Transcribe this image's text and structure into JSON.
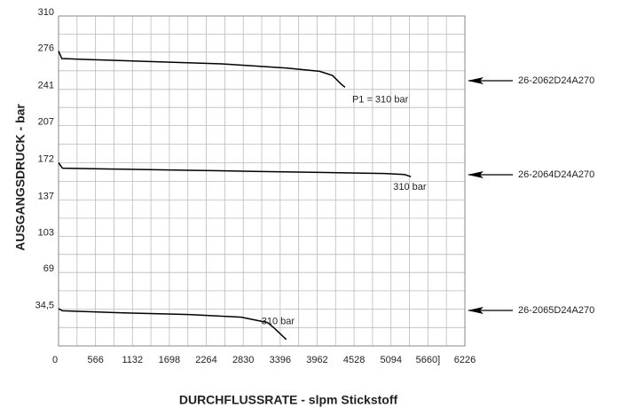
{
  "chart_data": {
    "type": "line",
    "xlabel": "DURCHFLUSSRATE - slpm Stickstoff",
    "ylabel": "AUSGANGSDRUCK - bar",
    "xlim": [
      0,
      6226
    ],
    "ylim": [
      0,
      310
    ],
    "xticks": [
      0,
      566,
      1132,
      1698,
      2264,
      2830,
      3396,
      3962,
      4528,
      5094,
      {
        "value": 5660,
        "label": "5660]"
      },
      6226
    ],
    "yticks": [
      {
        "value": 34.5,
        "label": "34,5"
      },
      69,
      103,
      137,
      172,
      207,
      241,
      276,
      310
    ],
    "grid": true,
    "series": [
      {
        "name": "26-2062D24A270",
        "color": "#000000",
        "annotation": "P1 = 310 bar",
        "x": [
          0,
          50,
          500,
          1500,
          2500,
          3500,
          4000,
          4200,
          4330,
          4390
        ],
        "values": [
          277,
          270,
          269,
          267,
          265,
          261,
          258,
          254,
          246,
          243
        ]
      },
      {
        "name": "26-2064D24A270",
        "color": "#000000",
        "annotation": "310 bar",
        "x": [
          0,
          60,
          1000,
          2000,
          3000,
          4000,
          5000,
          5300,
          5400
        ],
        "values": [
          172,
          167,
          166,
          165,
          164,
          163,
          162,
          161,
          159
        ]
      },
      {
        "name": "26-2065D24A270",
        "color": "#000000",
        "annotation": "310 bar",
        "x": [
          0,
          60,
          1000,
          2000,
          2800,
          3200,
          3300,
          3490
        ],
        "values": [
          35,
          33,
          31,
          29.5,
          27,
          22,
          17,
          6
        ]
      }
    ]
  }
}
